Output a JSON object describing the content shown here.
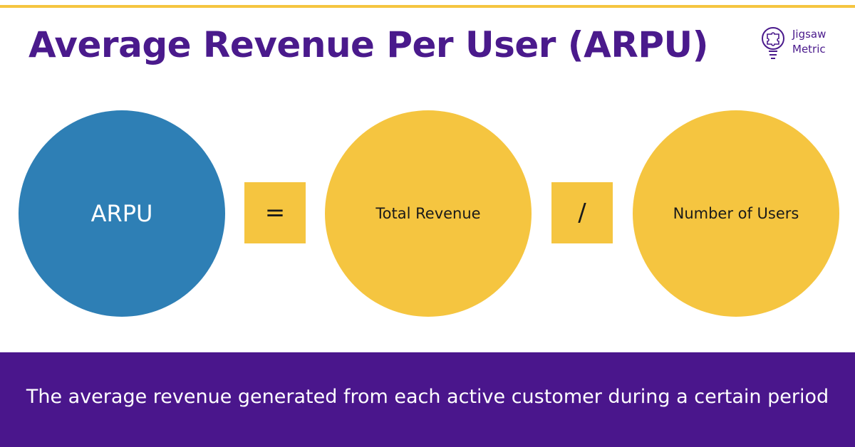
{
  "header": {
    "title": "Average Revenue Per User (ARPU)"
  },
  "logo": {
    "line1": "Jigsaw",
    "line2": "Metric",
    "icon": "puzzle-lightbulb-icon"
  },
  "formula": {
    "result_label": "ARPU",
    "equals_symbol": "=",
    "numerator_label": "Total Revenue",
    "divide_symbol": "/",
    "denominator_label": "Number of Users"
  },
  "footer": {
    "description": "The average revenue generated from each active customer during a certain period"
  },
  "colors": {
    "brand_purple": "#4a1a8c",
    "accent_yellow": "#f5c540",
    "arpu_blue": "#2e7fb5",
    "footer_purple": "#4a168c"
  }
}
